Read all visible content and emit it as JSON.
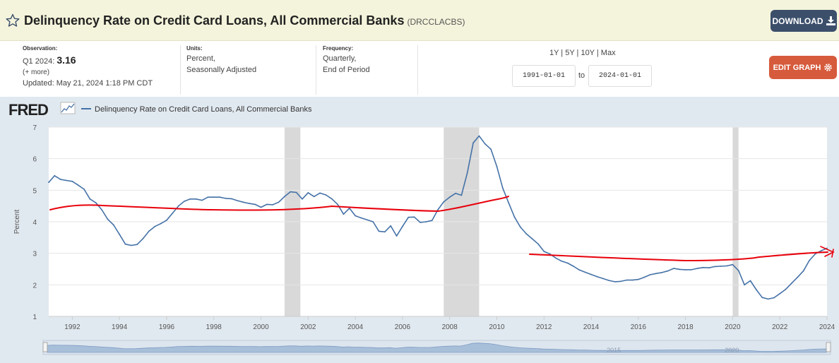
{
  "header": {
    "title": "Delinquency Rate on Credit Card Loans, All Commercial Banks",
    "series_code": "(DRCCLACBS)",
    "download_label": "DOWNLOAD"
  },
  "info": {
    "observation": {
      "label": "Observation:",
      "period": "Q1 2024:",
      "value": "3.16",
      "more": "(+ more)",
      "updated": "Updated: May 21, 2024 1:18 PM CDT"
    },
    "units": {
      "label": "Units:",
      "line1": "Percent,",
      "line2": "Seasonally Adjusted"
    },
    "frequency": {
      "label": "Frequency:",
      "line1": "Quarterly,",
      "line2": "End of Period"
    },
    "ranges": "1Y | 5Y | 10Y | Max",
    "date_from": "1991-01-01",
    "to_label": "to",
    "date_to": "2024-01-01",
    "edit_graph_label": "EDIT GRAPH"
  },
  "colors": {
    "series": "#4572a7",
    "annotation": "#e8000b",
    "recession": "#d9d9d9",
    "header_bg": "#f4f4dc"
  },
  "chart_data": {
    "type": "line",
    "logo": "FRED",
    "legend": "Delinquency Rate on Credit Card Loans, All Commercial Banks",
    "ylabel": "Percent",
    "ylim": [
      1,
      7
    ],
    "xlim": [
      1991.0,
      2024.0
    ],
    "yticks": [
      "1",
      "2",
      "3",
      "4",
      "5",
      "6",
      "7"
    ],
    "xticks": [
      "1992",
      "1994",
      "1996",
      "1998",
      "2000",
      "2002",
      "2004",
      "2006",
      "2008",
      "2010",
      "2012",
      "2014",
      "2016",
      "2018",
      "2020",
      "2022",
      "2024"
    ],
    "navigator_labels": [
      "2015",
      "2020"
    ],
    "recessions": [
      [
        2001.0,
        2001.67
      ],
      [
        2007.75,
        2009.25
      ],
      [
        2020.0,
        2020.25
      ]
    ],
    "series": [
      {
        "name": "Delinquency Rate on Credit Card Loans, All Commercial Banks",
        "x": [
          1991.0,
          1991.25,
          1991.5,
          1991.75,
          1992.0,
          1992.25,
          1992.5,
          1992.75,
          1993.0,
          1993.25,
          1993.5,
          1993.75,
          1994.0,
          1994.25,
          1994.5,
          1994.75,
          1995.0,
          1995.25,
          1995.5,
          1995.75,
          1996.0,
          1996.25,
          1996.5,
          1996.75,
          1997.0,
          1997.25,
          1997.5,
          1997.75,
          1998.0,
          1998.25,
          1998.5,
          1998.75,
          1999.0,
          1999.25,
          1999.5,
          1999.75,
          2000.0,
          2000.25,
          2000.5,
          2000.75,
          2001.0,
          2001.25,
          2001.5,
          2001.75,
          2002.0,
          2002.25,
          2002.5,
          2002.75,
          2003.0,
          2003.25,
          2003.5,
          2003.75,
          2004.0,
          2004.25,
          2004.5,
          2004.75,
          2005.0,
          2005.25,
          2005.5,
          2005.75,
          2006.0,
          2006.25,
          2006.5,
          2006.75,
          2007.0,
          2007.25,
          2007.5,
          2007.75,
          2008.0,
          2008.25,
          2008.5,
          2008.75,
          2009.0,
          2009.25,
          2009.5,
          2009.75,
          2010.0,
          2010.25,
          2010.5,
          2010.75,
          2011.0,
          2011.25,
          2011.5,
          2011.75,
          2012.0,
          2012.25,
          2012.5,
          2012.75,
          2013.0,
          2013.25,
          2013.5,
          2013.75,
          2014.0,
          2014.25,
          2014.5,
          2014.75,
          2015.0,
          2015.25,
          2015.5,
          2015.75,
          2016.0,
          2016.25,
          2016.5,
          2016.75,
          2017.0,
          2017.25,
          2017.5,
          2017.75,
          2018.0,
          2018.25,
          2018.5,
          2018.75,
          2019.0,
          2019.25,
          2019.5,
          2019.75,
          2020.0,
          2020.25,
          2020.5,
          2020.75,
          2021.0,
          2021.25,
          2021.5,
          2021.75,
          2022.0,
          2022.25,
          2022.5,
          2022.75,
          2023.0,
          2023.25,
          2023.5,
          2023.75,
          2024.0
        ],
        "values": [
          5.25,
          5.46,
          5.34,
          5.31,
          5.28,
          5.16,
          5.03,
          4.72,
          4.6,
          4.38,
          4.08,
          3.9,
          3.6,
          3.29,
          3.25,
          3.28,
          3.47,
          3.7,
          3.85,
          3.94,
          4.05,
          4.27,
          4.5,
          4.65,
          4.72,
          4.72,
          4.68,
          4.78,
          4.78,
          4.78,
          4.74,
          4.73,
          4.67,
          4.62,
          4.58,
          4.55,
          4.46,
          4.55,
          4.54,
          4.62,
          4.8,
          4.95,
          4.93,
          4.72,
          4.92,
          4.8,
          4.91,
          4.85,
          4.73,
          4.55,
          4.24,
          4.43,
          4.19,
          4.12,
          4.06,
          4.0,
          3.7,
          3.68,
          3.87,
          3.55,
          3.85,
          4.14,
          4.15,
          3.98,
          4.0,
          4.04,
          4.38,
          4.63,
          4.78,
          4.9,
          4.84,
          5.55,
          6.5,
          6.72,
          6.47,
          6.3,
          5.75,
          5.07,
          4.6,
          4.15,
          3.83,
          3.62,
          3.46,
          3.3,
          3.06,
          2.98,
          2.85,
          2.75,
          2.69,
          2.59,
          2.47,
          2.4,
          2.33,
          2.26,
          2.2,
          2.14,
          2.1,
          2.11,
          2.15,
          2.15,
          2.17,
          2.24,
          2.32,
          2.36,
          2.39,
          2.44,
          2.52,
          2.49,
          2.48,
          2.48,
          2.52,
          2.55,
          2.54,
          2.58,
          2.59,
          2.6,
          2.64,
          2.45,
          2.0,
          2.13,
          1.85,
          1.6,
          1.55,
          1.59,
          1.72,
          1.86,
          2.05,
          2.24,
          2.44,
          2.77,
          2.98,
          3.08,
          3.16
        ]
      }
    ]
  }
}
